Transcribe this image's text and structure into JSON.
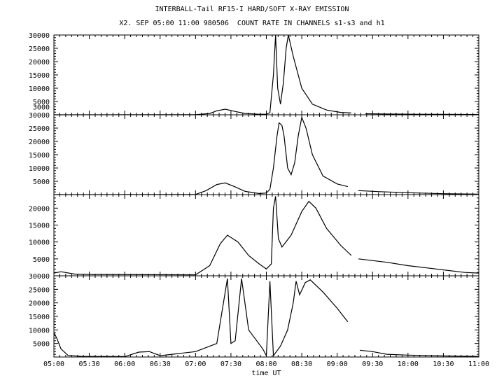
{
  "header": {
    "title": "INTERBALL-Tail RF15-I HARD/SOFT X-RAY EMISSION",
    "subtitle": "X2. SEP 05:00 11:00 980506  COUNT RATE IN CHANNELS s1-s3 and h1"
  },
  "chart_data": {
    "type": "line",
    "xlabel": "time UT",
    "x_range_hours": [
      5.0,
      11.0
    ],
    "x_ticks": [
      "05:00",
      "05:30",
      "06:00",
      "06:30",
      "07:00",
      "07:30",
      "08:00",
      "08:30",
      "09:00",
      "09:30",
      "10:00",
      "10:30",
      "11:00"
    ],
    "panels": [
      {
        "name": "s1",
        "ylim": [
          0,
          30000
        ],
        "y_ticks": [
          3000,
          5000,
          10000,
          15000,
          20000,
          25000,
          30000
        ],
        "points": [
          [
            5.0,
            0
          ],
          [
            7.0,
            50
          ],
          [
            7.2,
            500
          ],
          [
            7.3,
            1500
          ],
          [
            7.42,
            2100
          ],
          [
            7.55,
            1300
          ],
          [
            7.7,
            500
          ],
          [
            7.9,
            200
          ],
          [
            8.0,
            200
          ],
          [
            8.05,
            800
          ],
          [
            8.1,
            15000
          ],
          [
            8.13,
            30000
          ],
          [
            8.16,
            10000
          ],
          [
            8.2,
            4000
          ],
          [
            8.24,
            12000
          ],
          [
            8.28,
            25000
          ],
          [
            8.31,
            30000
          ],
          [
            8.38,
            22000
          ],
          [
            8.5,
            10000
          ],
          [
            8.65,
            4000
          ],
          [
            8.85,
            1800
          ],
          [
            9.05,
            900
          ],
          [
            9.2,
            700
          ],
          [
            9.4,
            400
          ],
          [
            9.7,
            300
          ],
          [
            10.1,
            200
          ],
          [
            11.0,
            100
          ]
        ],
        "gaps": [
          [
            9.22,
            9.28
          ]
        ]
      },
      {
        "name": "s2",
        "ylim": [
          0,
          30000
        ],
        "y_ticks": [
          5000,
          10000,
          15000,
          20000,
          25000,
          30000
        ],
        "points": [
          [
            5.0,
            0
          ],
          [
            7.0,
            50
          ],
          [
            7.15,
            1500
          ],
          [
            7.3,
            3800
          ],
          [
            7.42,
            4400
          ],
          [
            7.55,
            3000
          ],
          [
            7.7,
            1200
          ],
          [
            7.9,
            400
          ],
          [
            8.0,
            600
          ],
          [
            8.05,
            2000
          ],
          [
            8.1,
            10000
          ],
          [
            8.15,
            22000
          ],
          [
            8.18,
            27000
          ],
          [
            8.22,
            26000
          ],
          [
            8.25,
            22000
          ],
          [
            8.3,
            10000
          ],
          [
            8.35,
            7500
          ],
          [
            8.4,
            12000
          ],
          [
            8.45,
            22000
          ],
          [
            8.5,
            29000
          ],
          [
            8.56,
            25000
          ],
          [
            8.65,
            15000
          ],
          [
            8.8,
            7000
          ],
          [
            9.0,
            4000
          ],
          [
            9.15,
            3000
          ],
          [
            9.3,
            1500
          ],
          [
            9.6,
            1100
          ],
          [
            10.0,
            700
          ],
          [
            10.5,
            350
          ],
          [
            11.0,
            150
          ]
        ],
        "gaps": [
          [
            9.22,
            9.28
          ]
        ]
      },
      {
        "name": "s3",
        "ylim": [
          0,
          24000
        ],
        "y_ticks": [
          5000,
          10000,
          15000,
          20000
        ],
        "points": [
          [
            5.0,
            800
          ],
          [
            5.1,
            1200
          ],
          [
            5.3,
            500
          ],
          [
            5.5,
            400
          ],
          [
            7.0,
            300
          ],
          [
            7.2,
            3000
          ],
          [
            7.35,
            9500
          ],
          [
            7.45,
            12000
          ],
          [
            7.6,
            10000
          ],
          [
            7.75,
            6000
          ],
          [
            7.9,
            3500
          ],
          [
            8.0,
            2000
          ],
          [
            8.07,
            3500
          ],
          [
            8.1,
            20000
          ],
          [
            8.13,
            23500
          ],
          [
            8.17,
            11000
          ],
          [
            8.22,
            8500
          ],
          [
            8.35,
            12000
          ],
          [
            8.5,
            19000
          ],
          [
            8.6,
            22000
          ],
          [
            8.7,
            20000
          ],
          [
            8.85,
            14000
          ],
          [
            9.05,
            9000
          ],
          [
            9.2,
            6000
          ],
          [
            9.3,
            5000
          ],
          [
            9.7,
            4000
          ],
          [
            10.0,
            3000
          ],
          [
            10.4,
            2000
          ],
          [
            10.8,
            1000
          ],
          [
            11.0,
            800
          ]
        ],
        "gaps": [
          [
            9.2,
            9.28
          ]
        ]
      },
      {
        "name": "h1",
        "ylim": [
          0,
          30000
        ],
        "y_ticks": [
          5000,
          10000,
          15000,
          20000,
          25000,
          30000
        ],
        "points": [
          [
            5.0,
            9000
          ],
          [
            5.04,
            7000
          ],
          [
            5.1,
            3000
          ],
          [
            5.2,
            600
          ],
          [
            5.4,
            200
          ],
          [
            6.0,
            150
          ],
          [
            6.2,
            1800
          ],
          [
            6.35,
            2000
          ],
          [
            6.5,
            500
          ],
          [
            7.0,
            2000
          ],
          [
            7.3,
            5000
          ],
          [
            7.45,
            29000
          ],
          [
            7.5,
            5000
          ],
          [
            7.56,
            6000
          ],
          [
            7.65,
            29000
          ],
          [
            7.75,
            10000
          ],
          [
            7.95,
            3000
          ],
          [
            8.0,
            500
          ],
          [
            8.05,
            28000
          ],
          [
            8.1,
            500
          ],
          [
            8.2,
            4000
          ],
          [
            8.3,
            10000
          ],
          [
            8.38,
            20000
          ],
          [
            8.42,
            28000
          ],
          [
            8.47,
            23000
          ],
          [
            8.55,
            27500
          ],
          [
            8.62,
            28500
          ],
          [
            8.8,
            24000
          ],
          [
            9.0,
            18000
          ],
          [
            9.15,
            13000
          ],
          [
            9.32,
            2500
          ],
          [
            9.5,
            2000
          ],
          [
            9.7,
            1000
          ],
          [
            10.0,
            700
          ],
          [
            10.5,
            400
          ],
          [
            11.0,
            200
          ]
        ],
        "gaps": [
          [
            9.22,
            9.3
          ]
        ]
      }
    ]
  }
}
